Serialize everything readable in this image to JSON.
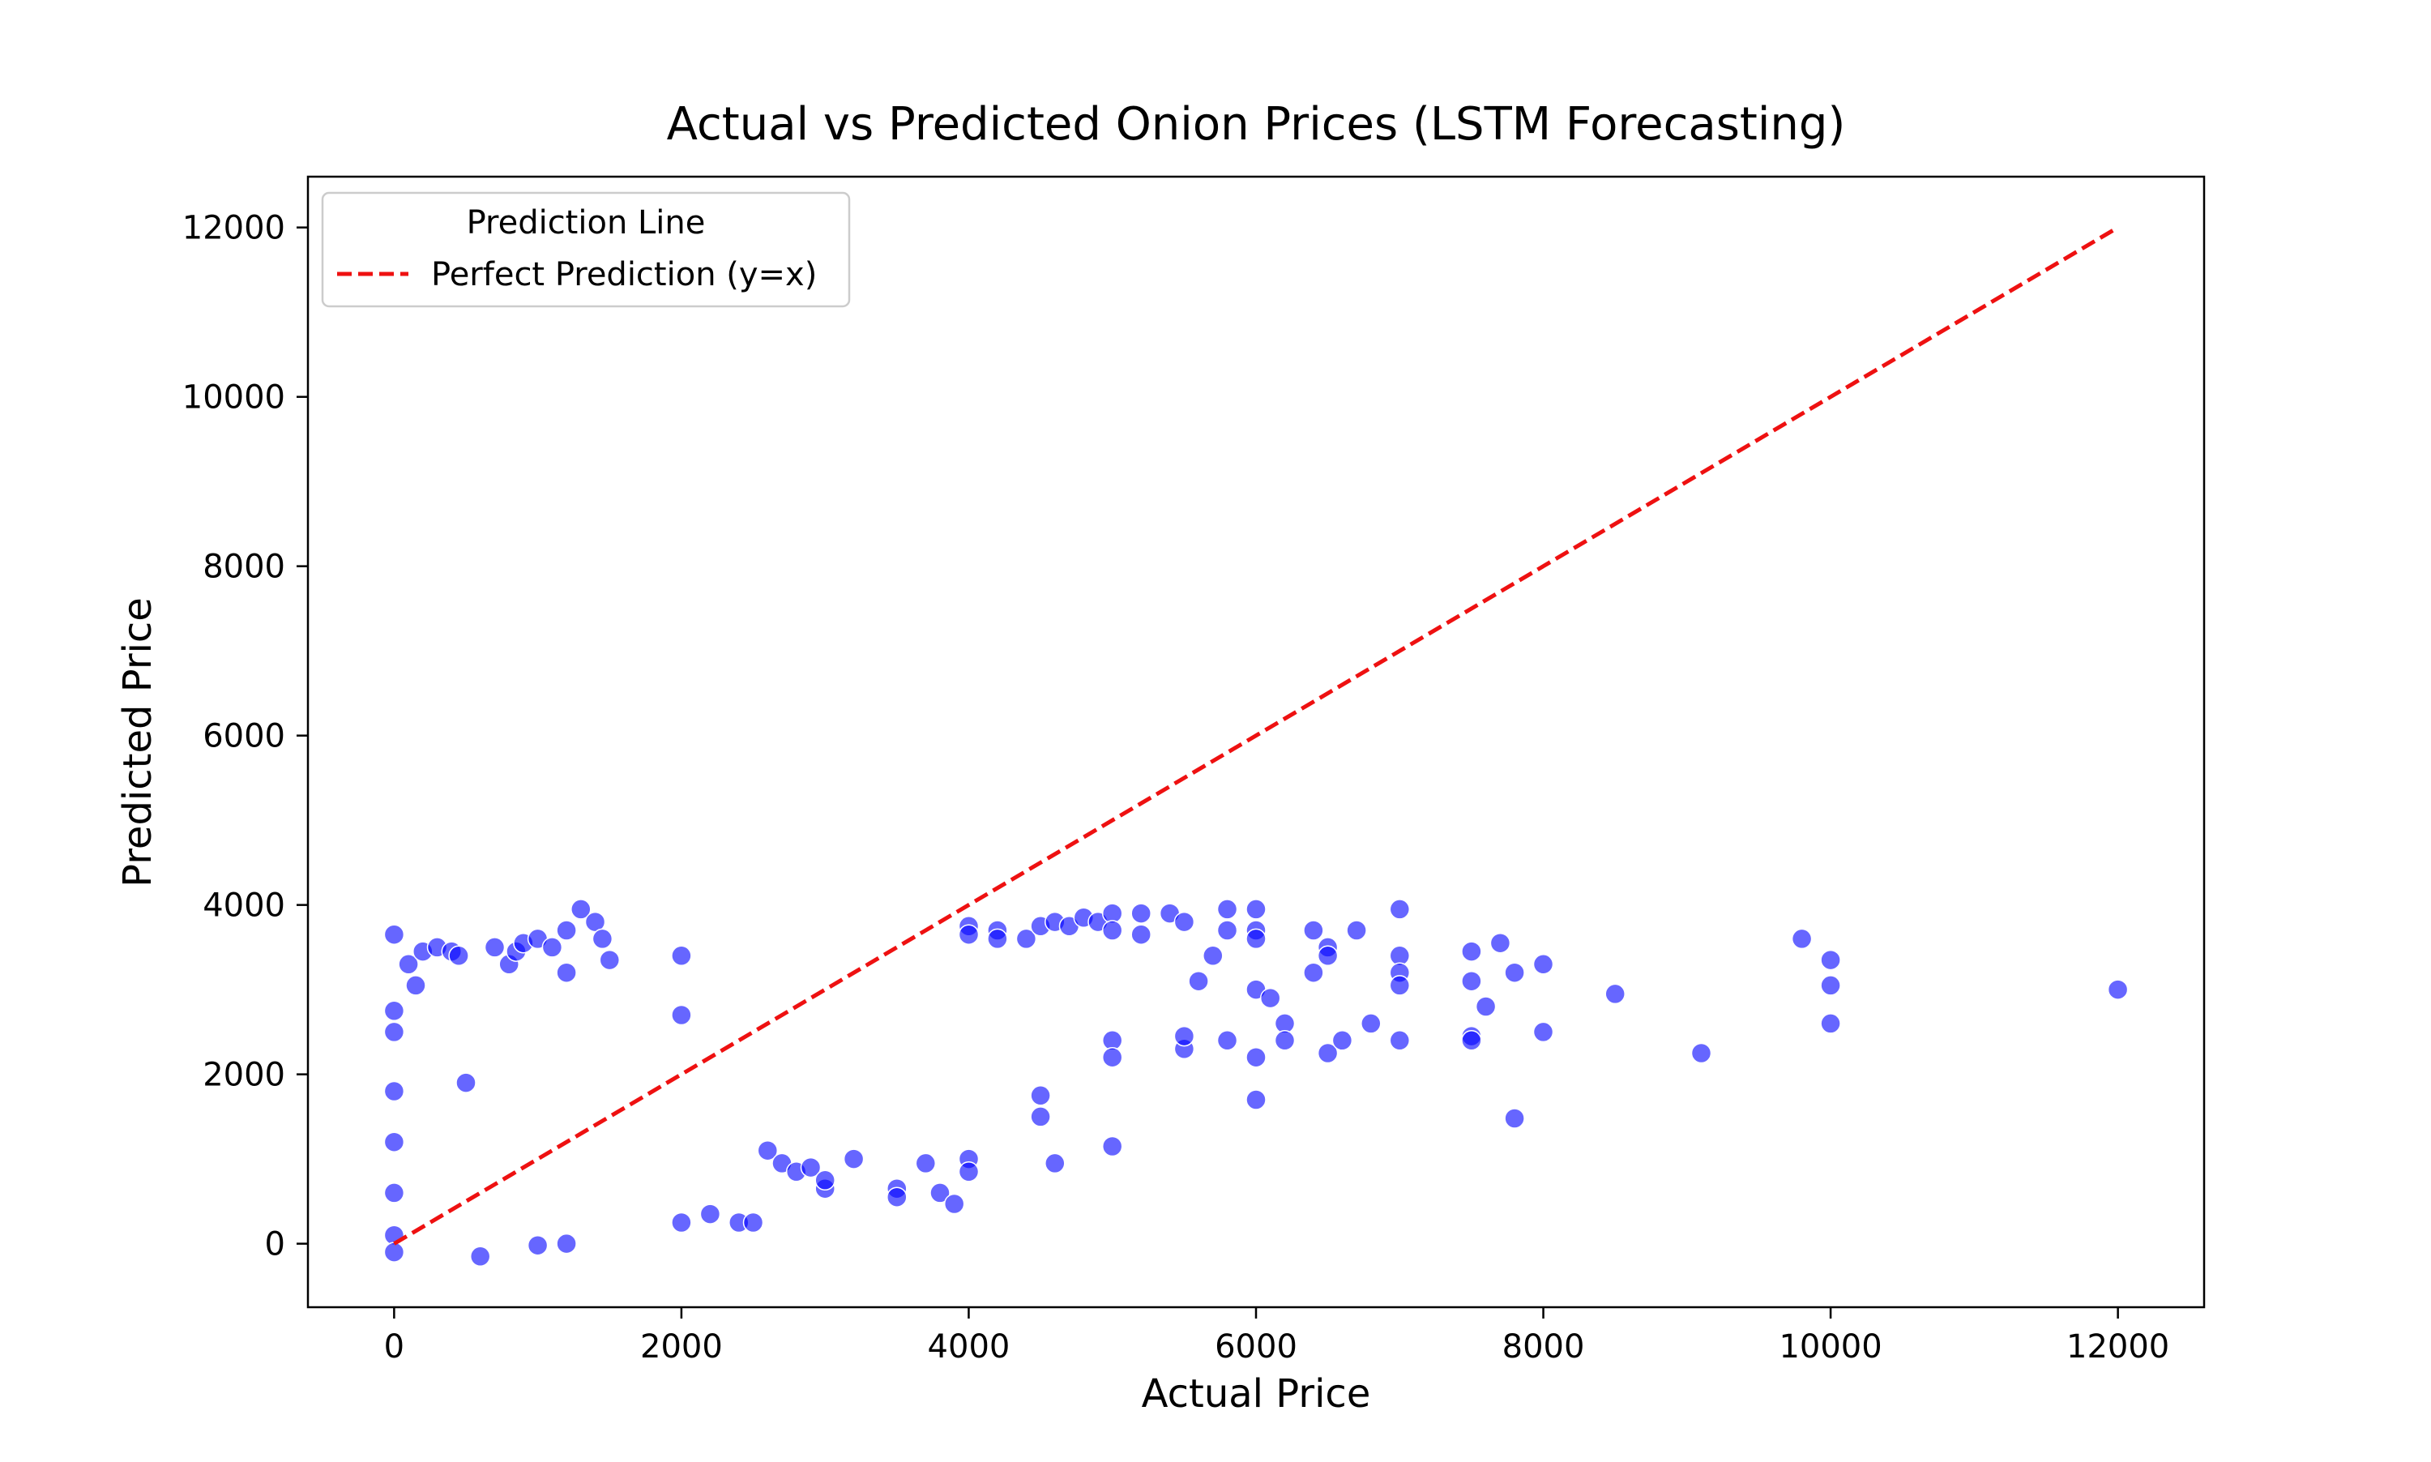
{
  "chart_data": {
    "type": "scatter",
    "title": "Actual vs Predicted Onion Prices (LSTM Forecasting)",
    "xlabel": "Actual Price",
    "ylabel": "Predicted Price",
    "xlim": [
      -600,
      12600
    ],
    "ylim": [
      -750,
      12600
    ],
    "xticks": [
      0,
      2000,
      4000,
      6000,
      8000,
      10000,
      12000
    ],
    "yticks": [
      0,
      2000,
      4000,
      6000,
      8000,
      10000,
      12000
    ],
    "grid": false,
    "legend": {
      "title": "Prediction Line",
      "placement": "top-left",
      "entries": [
        {
          "label": "Perfect Prediction (y=x)",
          "color": "#ee1111",
          "style": "dashed"
        }
      ]
    },
    "reference_line": {
      "x": [
        0,
        12000
      ],
      "y": [
        0,
        12000
      ],
      "color": "#ee1111"
    },
    "point_color": "#0000ff",
    "point_edge_color": "#ffffff",
    "point_alpha": 0.6,
    "points": [
      [
        0,
        3650
      ],
      [
        0,
        2750
      ],
      [
        0,
        2500
      ],
      [
        0,
        1800
      ],
      [
        0,
        1200
      ],
      [
        0,
        600
      ],
      [
        0,
        100
      ],
      [
        0,
        -100
      ],
      [
        100,
        3300
      ],
      [
        150,
        3050
      ],
      [
        200,
        3450
      ],
      [
        300,
        3500
      ],
      [
        400,
        3450
      ],
      [
        450,
        3400
      ],
      [
        500,
        1900
      ],
      [
        700,
        3500
      ],
      [
        800,
        3300
      ],
      [
        850,
        3450
      ],
      [
        900,
        3550
      ],
      [
        1000,
        3600
      ],
      [
        1100,
        3500
      ],
      [
        1200,
        3700
      ],
      [
        1300,
        3950
      ],
      [
        1400,
        3800
      ],
      [
        1450,
        3600
      ],
      [
        1500,
        3350
      ],
      [
        1200,
        3200
      ],
      [
        600,
        -150
      ],
      [
        1000,
        -20
      ],
      [
        1200,
        0
      ],
      [
        2000,
        3400
      ],
      [
        2000,
        2700
      ],
      [
        2000,
        250
      ],
      [
        2200,
        350
      ],
      [
        2400,
        250
      ],
      [
        2500,
        250
      ],
      [
        2600,
        1100
      ],
      [
        2700,
        950
      ],
      [
        2800,
        850
      ],
      [
        2900,
        900
      ],
      [
        3000,
        650
      ],
      [
        3000,
        750
      ],
      [
        3200,
        1000
      ],
      [
        3500,
        650
      ],
      [
        3500,
        550
      ],
      [
        3700,
        950
      ],
      [
        3800,
        600
      ],
      [
        3900,
        470
      ],
      [
        4000,
        1000
      ],
      [
        4000,
        850
      ],
      [
        4000,
        3750
      ],
      [
        4000,
        3650
      ],
      [
        4200,
        3700
      ],
      [
        4200,
        3600
      ],
      [
        4500,
        1500
      ],
      [
        4600,
        950
      ],
      [
        4500,
        1750
      ],
      [
        4400,
        3600
      ],
      [
        4500,
        3750
      ],
      [
        4600,
        3800
      ],
      [
        4700,
        3750
      ],
      [
        4800,
        3850
      ],
      [
        4900,
        3800
      ],
      [
        5000,
        3900
      ],
      [
        5000,
        3700
      ],
      [
        5000,
        2400
      ],
      [
        5000,
        2200
      ],
      [
        5000,
        1150
      ],
      [
        5200,
        3900
      ],
      [
        5200,
        3650
      ],
      [
        5400,
        3900
      ],
      [
        5500,
        3800
      ],
      [
        5500,
        2300
      ],
      [
        5500,
        2450
      ],
      [
        5600,
        3100
      ],
      [
        5700,
        3400
      ],
      [
        5800,
        3950
      ],
      [
        5800,
        3700
      ],
      [
        5800,
        2400
      ],
      [
        6000,
        3950
      ],
      [
        6000,
        3700
      ],
      [
        6000,
        3600
      ],
      [
        6000,
        3000
      ],
      [
        6000,
        2200
      ],
      [
        6000,
        1700
      ],
      [
        6100,
        2900
      ],
      [
        6200,
        2600
      ],
      [
        6200,
        2400
      ],
      [
        6400,
        3700
      ],
      [
        6400,
        3200
      ],
      [
        6500,
        3500
      ],
      [
        6500,
        3400
      ],
      [
        6500,
        2250
      ],
      [
        6600,
        2400
      ],
      [
        6700,
        3700
      ],
      [
        6800,
        2600
      ],
      [
        7000,
        3950
      ],
      [
        7000,
        3400
      ],
      [
        7000,
        3200
      ],
      [
        7000,
        3050
      ],
      [
        7000,
        2400
      ],
      [
        7500,
        3450
      ],
      [
        7500,
        3100
      ],
      [
        7500,
        2450
      ],
      [
        7500,
        2400
      ],
      [
        7600,
        2800
      ],
      [
        7700,
        3550
      ],
      [
        7800,
        3200
      ],
      [
        7800,
        1480
      ],
      [
        8000,
        3300
      ],
      [
        8000,
        2500
      ],
      [
        8500,
        2950
      ],
      [
        9100,
        2250
      ],
      [
        9800,
        3600
      ],
      [
        10000,
        3350
      ],
      [
        10000,
        3050
      ],
      [
        10000,
        2600
      ],
      [
        12000,
        3000
      ]
    ]
  }
}
